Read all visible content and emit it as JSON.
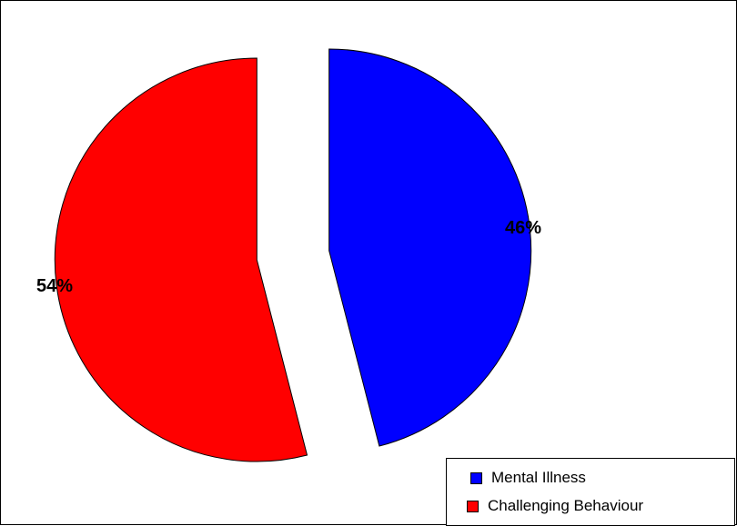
{
  "chart_data": {
    "type": "pie",
    "title": "",
    "slices": [
      {
        "label": "Mental Illness",
        "value": 46,
        "display": "46%",
        "color": "#0000FF"
      },
      {
        "label": "Challenging Behaviour",
        "value": 54,
        "display": "54%",
        "color": "#FF0000"
      }
    ],
    "exploded": true,
    "legend": {
      "position": "bottom-right",
      "entries": [
        "Mental Illness",
        "Challenging Behaviour"
      ]
    }
  }
}
